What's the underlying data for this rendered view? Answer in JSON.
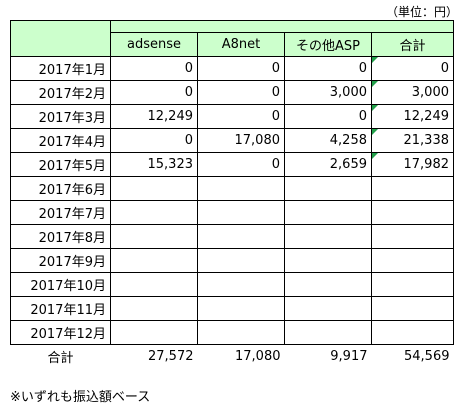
{
  "unit_label": "（単位：円）",
  "headers": {
    "col1": "adsense",
    "col2": "A8net",
    "col3": "その他ASP",
    "total": "合計"
  },
  "rows": [
    {
      "month": "2017年1月",
      "adsense": "0",
      "a8net": "0",
      "other": "0",
      "total": "0"
    },
    {
      "month": "2017年2月",
      "adsense": "0",
      "a8net": "0",
      "other": "3,000",
      "total": "3,000"
    },
    {
      "month": "2017年3月",
      "adsense": "12,249",
      "a8net": "0",
      "other": "0",
      "total": "12,249"
    },
    {
      "month": "2017年4月",
      "adsense": "0",
      "a8net": "17,080",
      "other": "4,258",
      "total": "21,338"
    },
    {
      "month": "2017年5月",
      "adsense": "15,323",
      "a8net": "0",
      "other": "2,659",
      "total": "17,982"
    },
    {
      "month": "2017年6月",
      "adsense": "",
      "a8net": "",
      "other": "",
      "total": ""
    },
    {
      "month": "2017年7月",
      "adsense": "",
      "a8net": "",
      "other": "",
      "total": ""
    },
    {
      "month": "2017年8月",
      "adsense": "",
      "a8net": "",
      "other": "",
      "total": ""
    },
    {
      "month": "2017年9月",
      "adsense": "",
      "a8net": "",
      "other": "",
      "total": ""
    },
    {
      "month": "2017年10月",
      "adsense": "",
      "a8net": "",
      "other": "",
      "total": ""
    },
    {
      "month": "2017年11月",
      "adsense": "",
      "a8net": "",
      "other": "",
      "total": ""
    },
    {
      "month": "2017年12月",
      "adsense": "",
      "a8net": "",
      "other": "",
      "total": ""
    }
  ],
  "sum": {
    "label": "合計",
    "adsense": "27,572",
    "a8net": "17,080",
    "other": "9,917",
    "total": "54,569"
  },
  "note": "※いずれも振込額ベース",
  "colors": {
    "header_bg": "#ccffcc",
    "comment_marker": "#22a04a"
  }
}
